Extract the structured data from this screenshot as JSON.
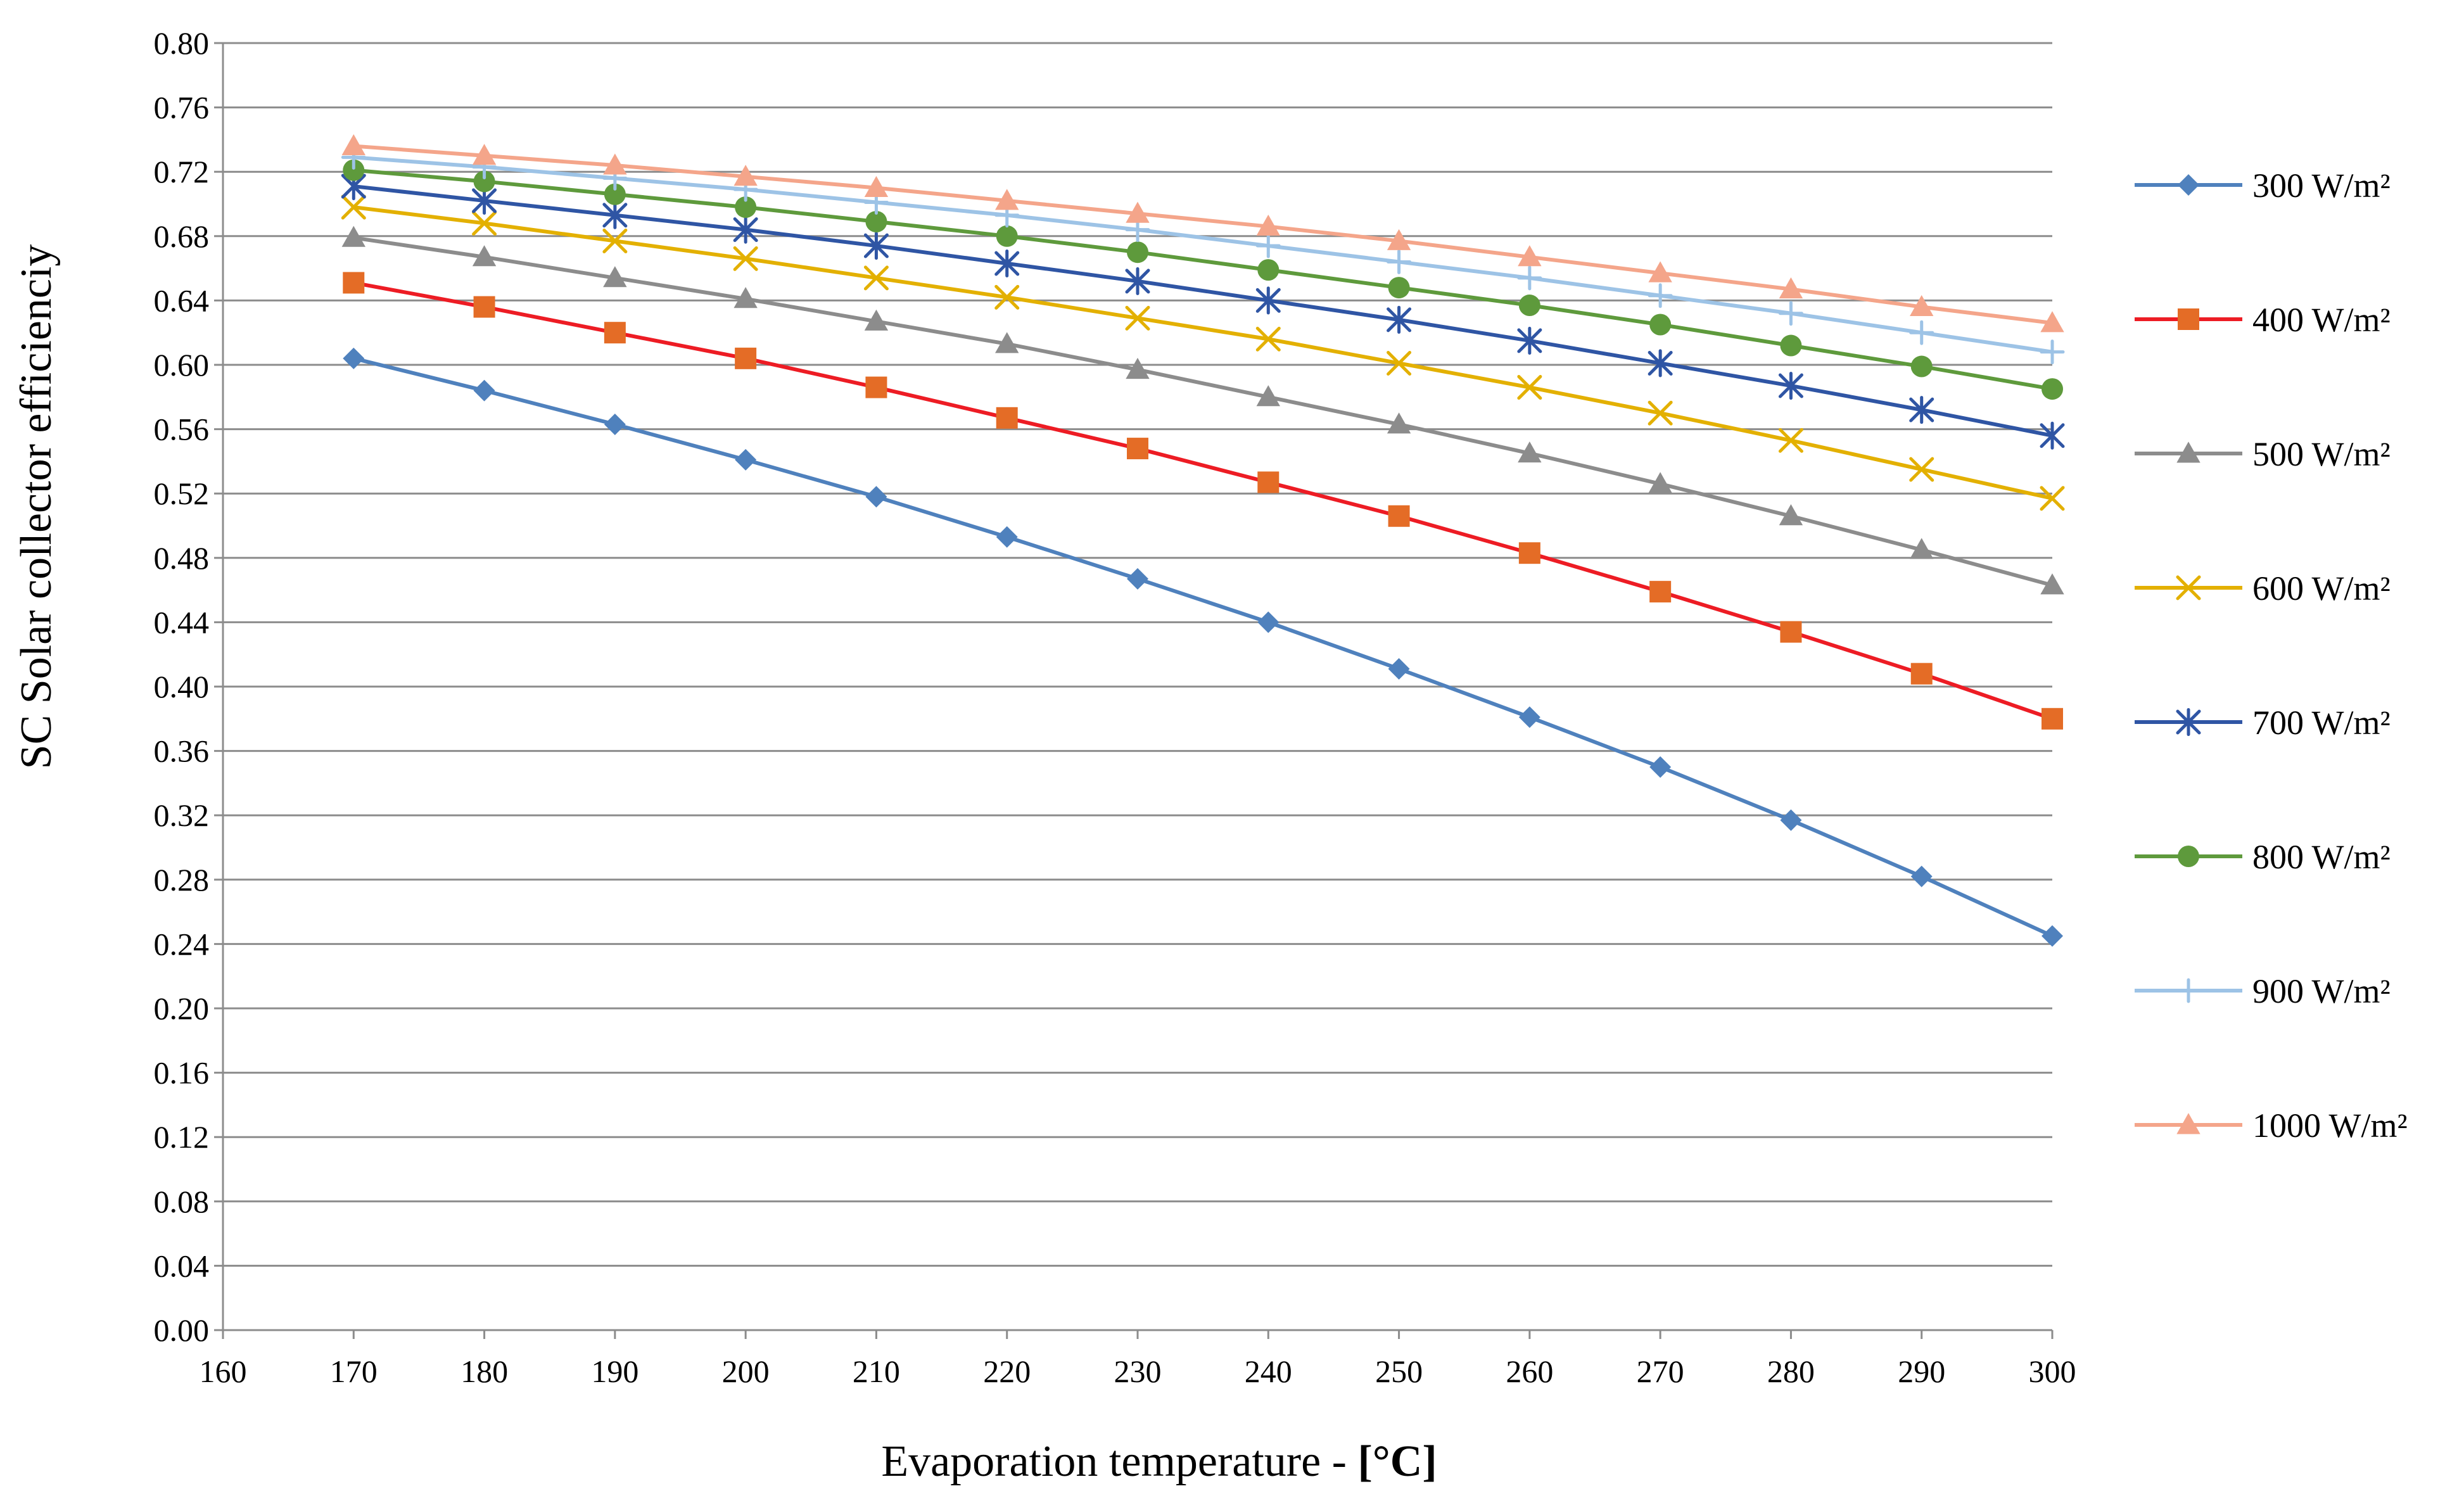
{
  "chart_data": {
    "type": "line",
    "title": "",
    "xlabel": "Evaporation temperature - ",
    "xlabel_unit": "[°C]",
    "ylabel": "SC Solar collector efficienciy",
    "xlim": [
      160,
      300
    ],
    "ylim": [
      0,
      0.8
    ],
    "x_ticks": [
      "160",
      "170",
      "180",
      "190",
      "200",
      "210",
      "220",
      "230",
      "240",
      "250",
      "260",
      "270",
      "280",
      "290",
      "300"
    ],
    "y_ticks": [
      "0.00",
      "0.04",
      "0.08",
      "0.12",
      "0.16",
      "0.20",
      "0.24",
      "0.28",
      "0.32",
      "0.36",
      "0.40",
      "0.44",
      "0.48",
      "0.52",
      "0.56",
      "0.60",
      "0.64",
      "0.68",
      "0.72",
      "0.76",
      "0.80"
    ],
    "grid": true,
    "legend_position": "right",
    "x": [
      170,
      180,
      190,
      200,
      210,
      220,
      230,
      240,
      250,
      260,
      270,
      280,
      290,
      300
    ],
    "series": [
      {
        "name": "300 W/m²",
        "color": "#4f81bd",
        "marker": "diamond",
        "values": [
          0.604,
          0.584,
          0.563,
          0.541,
          0.518,
          0.493,
          0.467,
          0.44,
          0.411,
          0.381,
          0.35,
          0.317,
          0.282,
          0.245
        ]
      },
      {
        "name": "400 W/m²",
        "color": "#ed1c24",
        "marker_color": "#e46c26",
        "marker": "square",
        "values": [
          0.651,
          0.636,
          0.62,
          0.604,
          0.586,
          0.567,
          0.548,
          0.527,
          0.506,
          0.483,
          0.459,
          0.434,
          0.408,
          0.38
        ]
      },
      {
        "name": "500 W/m²",
        "color": "#8c8c8c",
        "marker": "triangle",
        "values": [
          0.679,
          0.667,
          0.654,
          0.641,
          0.627,
          0.613,
          0.597,
          0.58,
          0.563,
          0.545,
          0.526,
          0.506,
          0.485,
          0.463
        ]
      },
      {
        "name": "600 W/m²",
        "color": "#e3b000",
        "marker": "x",
        "values": [
          0.698,
          0.688,
          0.677,
          0.666,
          0.654,
          0.642,
          0.629,
          0.616,
          0.601,
          0.586,
          0.57,
          0.553,
          0.535,
          0.517
        ]
      },
      {
        "name": "700 W/m²",
        "color": "#2f55a4",
        "marker": "star",
        "values": [
          0.711,
          0.702,
          0.693,
          0.684,
          0.674,
          0.663,
          0.652,
          0.64,
          0.628,
          0.615,
          0.601,
          0.587,
          0.572,
          0.556
        ]
      },
      {
        "name": "800 W/m²",
        "color": "#5e9a3c",
        "marker": "circle",
        "values": [
          0.721,
          0.714,
          0.706,
          0.698,
          0.689,
          0.68,
          0.67,
          0.659,
          0.648,
          0.637,
          0.625,
          0.612,
          0.599,
          0.585
        ]
      },
      {
        "name": "900 W/m²",
        "color": "#9dc3e6",
        "marker": "plus",
        "values": [
          0.729,
          0.723,
          0.716,
          0.709,
          0.701,
          0.693,
          0.684,
          0.674,
          0.664,
          0.654,
          0.643,
          0.632,
          0.62,
          0.608
        ]
      },
      {
        "name": "1000 W/m²",
        "color": "#f4a58a",
        "marker": "triangle",
        "values": [
          0.736,
          0.73,
          0.724,
          0.717,
          0.71,
          0.702,
          0.694,
          0.686,
          0.677,
          0.667,
          0.657,
          0.647,
          0.636,
          0.626
        ]
      }
    ]
  }
}
